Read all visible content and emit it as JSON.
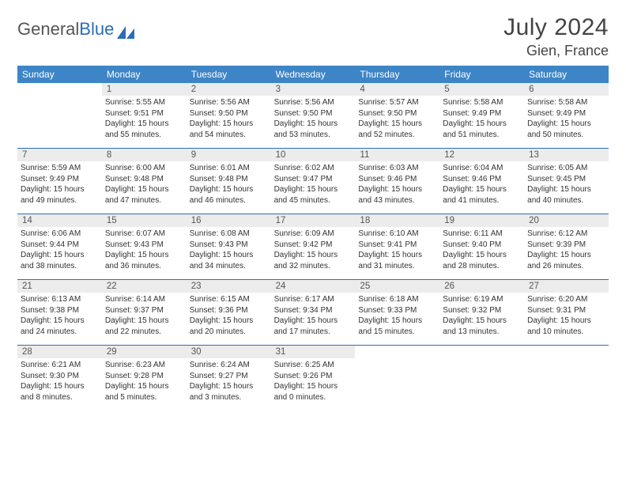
{
  "logo": {
    "text1": "General",
    "text2": "Blue"
  },
  "title": "July 2024",
  "location": "Gien, France",
  "colors": {
    "header_bar": "#3d85c6",
    "daynum_bg": "#ececec",
    "week_divider": "#2a6db8",
    "text": "#333333"
  },
  "weekdays": [
    "Sunday",
    "Monday",
    "Tuesday",
    "Wednesday",
    "Thursday",
    "Friday",
    "Saturday"
  ],
  "weeks": [
    [
      {
        "n": "",
        "sr": "",
        "ss": "",
        "dl1": "",
        "dl2": ""
      },
      {
        "n": "1",
        "sr": "Sunrise: 5:55 AM",
        "ss": "Sunset: 9:51 PM",
        "dl1": "Daylight: 15 hours",
        "dl2": "and 55 minutes."
      },
      {
        "n": "2",
        "sr": "Sunrise: 5:56 AM",
        "ss": "Sunset: 9:50 PM",
        "dl1": "Daylight: 15 hours",
        "dl2": "and 54 minutes."
      },
      {
        "n": "3",
        "sr": "Sunrise: 5:56 AM",
        "ss": "Sunset: 9:50 PM",
        "dl1": "Daylight: 15 hours",
        "dl2": "and 53 minutes."
      },
      {
        "n": "4",
        "sr": "Sunrise: 5:57 AM",
        "ss": "Sunset: 9:50 PM",
        "dl1": "Daylight: 15 hours",
        "dl2": "and 52 minutes."
      },
      {
        "n": "5",
        "sr": "Sunrise: 5:58 AM",
        "ss": "Sunset: 9:49 PM",
        "dl1": "Daylight: 15 hours",
        "dl2": "and 51 minutes."
      },
      {
        "n": "6",
        "sr": "Sunrise: 5:58 AM",
        "ss": "Sunset: 9:49 PM",
        "dl1": "Daylight: 15 hours",
        "dl2": "and 50 minutes."
      }
    ],
    [
      {
        "n": "7",
        "sr": "Sunrise: 5:59 AM",
        "ss": "Sunset: 9:49 PM",
        "dl1": "Daylight: 15 hours",
        "dl2": "and 49 minutes."
      },
      {
        "n": "8",
        "sr": "Sunrise: 6:00 AM",
        "ss": "Sunset: 9:48 PM",
        "dl1": "Daylight: 15 hours",
        "dl2": "and 47 minutes."
      },
      {
        "n": "9",
        "sr": "Sunrise: 6:01 AM",
        "ss": "Sunset: 9:48 PM",
        "dl1": "Daylight: 15 hours",
        "dl2": "and 46 minutes."
      },
      {
        "n": "10",
        "sr": "Sunrise: 6:02 AM",
        "ss": "Sunset: 9:47 PM",
        "dl1": "Daylight: 15 hours",
        "dl2": "and 45 minutes."
      },
      {
        "n": "11",
        "sr": "Sunrise: 6:03 AM",
        "ss": "Sunset: 9:46 PM",
        "dl1": "Daylight: 15 hours",
        "dl2": "and 43 minutes."
      },
      {
        "n": "12",
        "sr": "Sunrise: 6:04 AM",
        "ss": "Sunset: 9:46 PM",
        "dl1": "Daylight: 15 hours",
        "dl2": "and 41 minutes."
      },
      {
        "n": "13",
        "sr": "Sunrise: 6:05 AM",
        "ss": "Sunset: 9:45 PM",
        "dl1": "Daylight: 15 hours",
        "dl2": "and 40 minutes."
      }
    ],
    [
      {
        "n": "14",
        "sr": "Sunrise: 6:06 AM",
        "ss": "Sunset: 9:44 PM",
        "dl1": "Daylight: 15 hours",
        "dl2": "and 38 minutes."
      },
      {
        "n": "15",
        "sr": "Sunrise: 6:07 AM",
        "ss": "Sunset: 9:43 PM",
        "dl1": "Daylight: 15 hours",
        "dl2": "and 36 minutes."
      },
      {
        "n": "16",
        "sr": "Sunrise: 6:08 AM",
        "ss": "Sunset: 9:43 PM",
        "dl1": "Daylight: 15 hours",
        "dl2": "and 34 minutes."
      },
      {
        "n": "17",
        "sr": "Sunrise: 6:09 AM",
        "ss": "Sunset: 9:42 PM",
        "dl1": "Daylight: 15 hours",
        "dl2": "and 32 minutes."
      },
      {
        "n": "18",
        "sr": "Sunrise: 6:10 AM",
        "ss": "Sunset: 9:41 PM",
        "dl1": "Daylight: 15 hours",
        "dl2": "and 31 minutes."
      },
      {
        "n": "19",
        "sr": "Sunrise: 6:11 AM",
        "ss": "Sunset: 9:40 PM",
        "dl1": "Daylight: 15 hours",
        "dl2": "and 28 minutes."
      },
      {
        "n": "20",
        "sr": "Sunrise: 6:12 AM",
        "ss": "Sunset: 9:39 PM",
        "dl1": "Daylight: 15 hours",
        "dl2": "and 26 minutes."
      }
    ],
    [
      {
        "n": "21",
        "sr": "Sunrise: 6:13 AM",
        "ss": "Sunset: 9:38 PM",
        "dl1": "Daylight: 15 hours",
        "dl2": "and 24 minutes."
      },
      {
        "n": "22",
        "sr": "Sunrise: 6:14 AM",
        "ss": "Sunset: 9:37 PM",
        "dl1": "Daylight: 15 hours",
        "dl2": "and 22 minutes."
      },
      {
        "n": "23",
        "sr": "Sunrise: 6:15 AM",
        "ss": "Sunset: 9:36 PM",
        "dl1": "Daylight: 15 hours",
        "dl2": "and 20 minutes."
      },
      {
        "n": "24",
        "sr": "Sunrise: 6:17 AM",
        "ss": "Sunset: 9:34 PM",
        "dl1": "Daylight: 15 hours",
        "dl2": "and 17 minutes."
      },
      {
        "n": "25",
        "sr": "Sunrise: 6:18 AM",
        "ss": "Sunset: 9:33 PM",
        "dl1": "Daylight: 15 hours",
        "dl2": "and 15 minutes."
      },
      {
        "n": "26",
        "sr": "Sunrise: 6:19 AM",
        "ss": "Sunset: 9:32 PM",
        "dl1": "Daylight: 15 hours",
        "dl2": "and 13 minutes."
      },
      {
        "n": "27",
        "sr": "Sunrise: 6:20 AM",
        "ss": "Sunset: 9:31 PM",
        "dl1": "Daylight: 15 hours",
        "dl2": "and 10 minutes."
      }
    ],
    [
      {
        "n": "28",
        "sr": "Sunrise: 6:21 AM",
        "ss": "Sunset: 9:30 PM",
        "dl1": "Daylight: 15 hours",
        "dl2": "and 8 minutes."
      },
      {
        "n": "29",
        "sr": "Sunrise: 6:23 AM",
        "ss": "Sunset: 9:28 PM",
        "dl1": "Daylight: 15 hours",
        "dl2": "and 5 minutes."
      },
      {
        "n": "30",
        "sr": "Sunrise: 6:24 AM",
        "ss": "Sunset: 9:27 PM",
        "dl1": "Daylight: 15 hours",
        "dl2": "and 3 minutes."
      },
      {
        "n": "31",
        "sr": "Sunrise: 6:25 AM",
        "ss": "Sunset: 9:26 PM",
        "dl1": "Daylight: 15 hours",
        "dl2": "and 0 minutes."
      },
      {
        "n": "",
        "sr": "",
        "ss": "",
        "dl1": "",
        "dl2": ""
      },
      {
        "n": "",
        "sr": "",
        "ss": "",
        "dl1": "",
        "dl2": ""
      },
      {
        "n": "",
        "sr": "",
        "ss": "",
        "dl1": "",
        "dl2": ""
      }
    ]
  ]
}
